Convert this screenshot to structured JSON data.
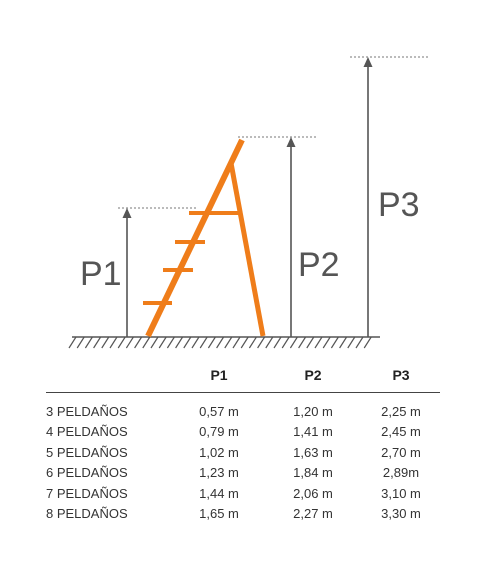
{
  "diagram": {
    "labels": {
      "p1": "P1",
      "p2": "P2",
      "p3": "P3"
    },
    "colors": {
      "ladder": "#ef7d1a",
      "lines": "#555555",
      "ground": "#555555"
    }
  },
  "table": {
    "headers": [
      "",
      "P1",
      "P2",
      "P3"
    ],
    "rows": [
      {
        "label": "3 PELDAÑOS",
        "p1": "0,57 m",
        "p2": "1,20 m",
        "p3": "2,25 m"
      },
      {
        "label": "4 PELDAÑOS",
        "p1": "0,79 m",
        "p2": "1,41 m",
        "p3": "2,45 m"
      },
      {
        "label": "5 PELDAÑOS",
        "p1": "1,02 m",
        "p2": "1,63 m",
        "p3": "2,70 m"
      },
      {
        "label": "6 PELDAÑOS",
        "p1": "1,23 m",
        "p2": "1,84 m",
        "p3": "2,89m"
      },
      {
        "label": "7 PELDAÑOS",
        "p1": "1,44 m",
        "p2": "2,06 m",
        "p3": "3,10 m"
      },
      {
        "label": "8 PELDAÑOS",
        "p1": "1,65 m",
        "p2": "2,27 m",
        "p3": "3,30 m"
      }
    ]
  }
}
